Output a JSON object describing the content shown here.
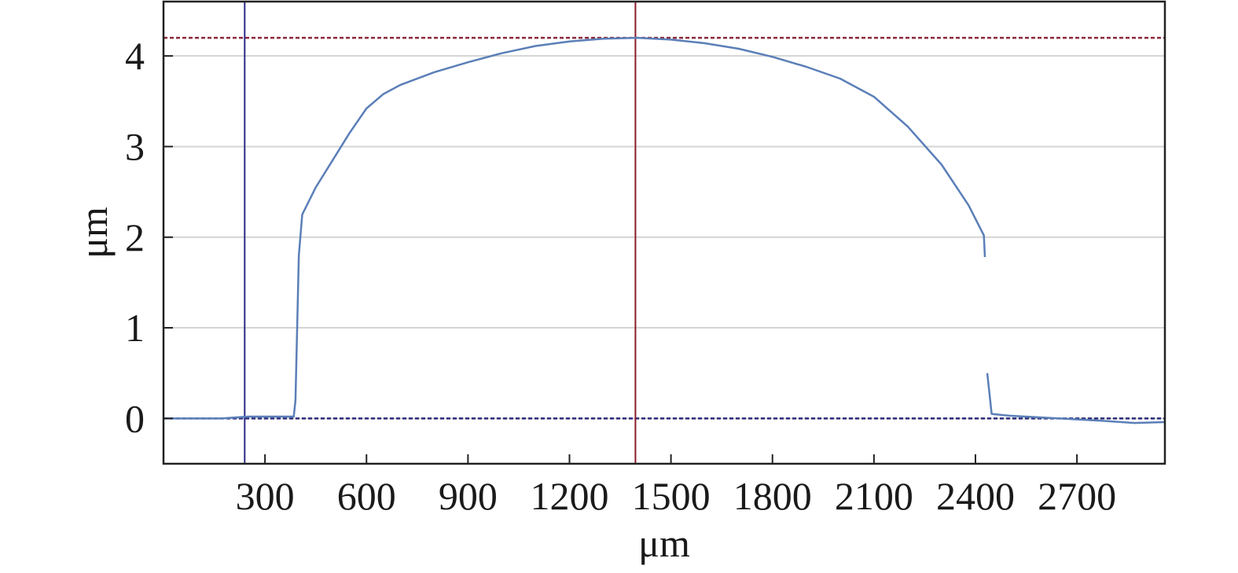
{
  "chart_data": {
    "type": "line",
    "title": "",
    "xlabel": "μm",
    "ylabel": "μm",
    "xlim": [
      0,
      2960
    ],
    "ylim": [
      -0.5,
      4.6
    ],
    "xticks": [
      300,
      600,
      900,
      1200,
      1500,
      1800,
      2100,
      2400,
      2700
    ],
    "yticks": [
      0,
      1,
      2,
      3,
      4
    ],
    "grid": "horizontal",
    "series": [
      {
        "segments": [
          [
            [
              0,
              0.0
            ],
            [
              170,
              0.0
            ],
            [
              250,
              0.02
            ],
            [
              310,
              0.02
            ],
            [
              385,
              0.02
            ],
            [
              390,
              0.2
            ],
            [
              400,
              1.8
            ],
            [
              410,
              2.25
            ],
            [
              450,
              2.55
            ],
            [
              500,
              2.85
            ],
            [
              550,
              3.15
            ],
            [
              600,
              3.42
            ],
            [
              650,
              3.58
            ],
            [
              700,
              3.68
            ],
            [
              800,
              3.82
            ],
            [
              900,
              3.93
            ],
            [
              1000,
              4.03
            ],
            [
              1100,
              4.11
            ],
            [
              1200,
              4.16
            ],
            [
              1300,
              4.19
            ],
            [
              1400,
              4.2
            ],
            [
              1500,
              4.18
            ],
            [
              1600,
              4.14
            ],
            [
              1700,
              4.08
            ],
            [
              1800,
              3.99
            ],
            [
              1900,
              3.88
            ],
            [
              2000,
              3.75
            ],
            [
              2100,
              3.55
            ],
            [
              2200,
              3.22
            ],
            [
              2300,
              2.8
            ],
            [
              2380,
              2.35
            ],
            [
              2425,
              2.02
            ],
            [
              2428,
              1.78
            ]
          ],
          [
            [
              2435,
              0.5
            ],
            [
              2448,
              0.05
            ],
            [
              2500,
              0.03
            ],
            [
              2600,
              0.01
            ],
            [
              2750,
              -0.02
            ],
            [
              2870,
              -0.05
            ],
            [
              2960,
              -0.04
            ]
          ]
        ]
      }
    ],
    "reference_lines": {
      "horizontal": [
        4.2,
        0.0
      ],
      "vertical": [
        240,
        1395
      ]
    },
    "colors": {
      "series": "#5b7fb8",
      "grid": "#d4d4d4",
      "ref_top": "#8b2a3a",
      "ref_zero": "#2a2a7a",
      "cursor_left": "#2b2b86",
      "cursor_right": "#8b1a2a",
      "frame": "#222222"
    }
  }
}
